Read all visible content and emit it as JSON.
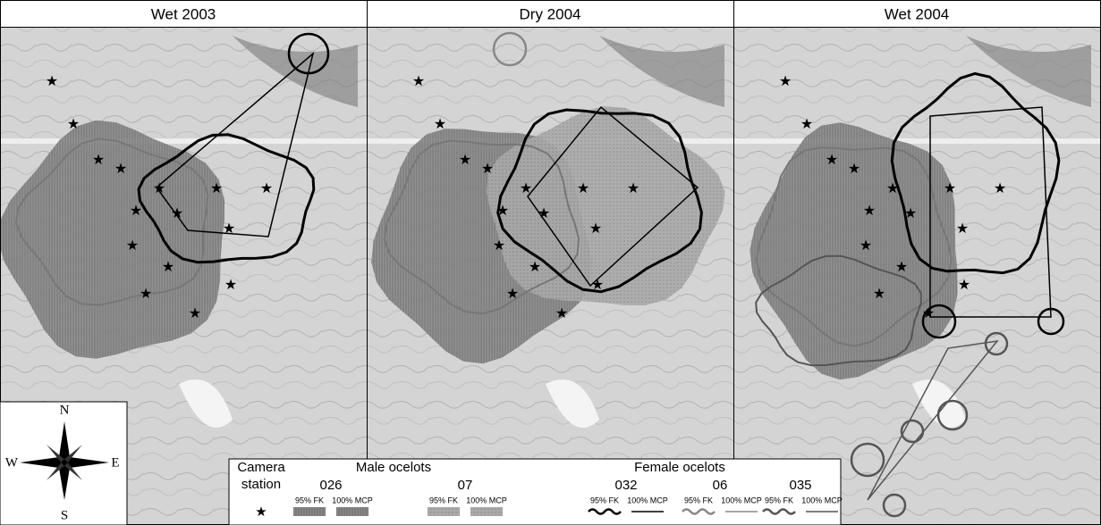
{
  "panels": [
    {
      "title": "Wet 2003"
    },
    {
      "title": "Dry 2004"
    },
    {
      "title": "Wet 2004"
    }
  ],
  "compass": {
    "n": "N",
    "e": "E",
    "s": "S",
    "w": "W"
  },
  "legend": {
    "camera_label": [
      "Camera",
      "station"
    ],
    "male_heading": "Male ocelots",
    "female_heading": "Female ocelots",
    "entries": [
      {
        "id": "026",
        "fk": "95% FK",
        "mcp": "100% MCP"
      },
      {
        "id": "07",
        "fk": "95% FK",
        "mcp": "100% MCP"
      },
      {
        "id": "032",
        "fk": "95% FK",
        "mcp": "100% MCP"
      },
      {
        "id": "06",
        "fk": "95% FK",
        "mcp": "100% MCP"
      },
      {
        "id": "035",
        "fk": "95% FK",
        "mcp": "100% MCP"
      }
    ]
  }
}
